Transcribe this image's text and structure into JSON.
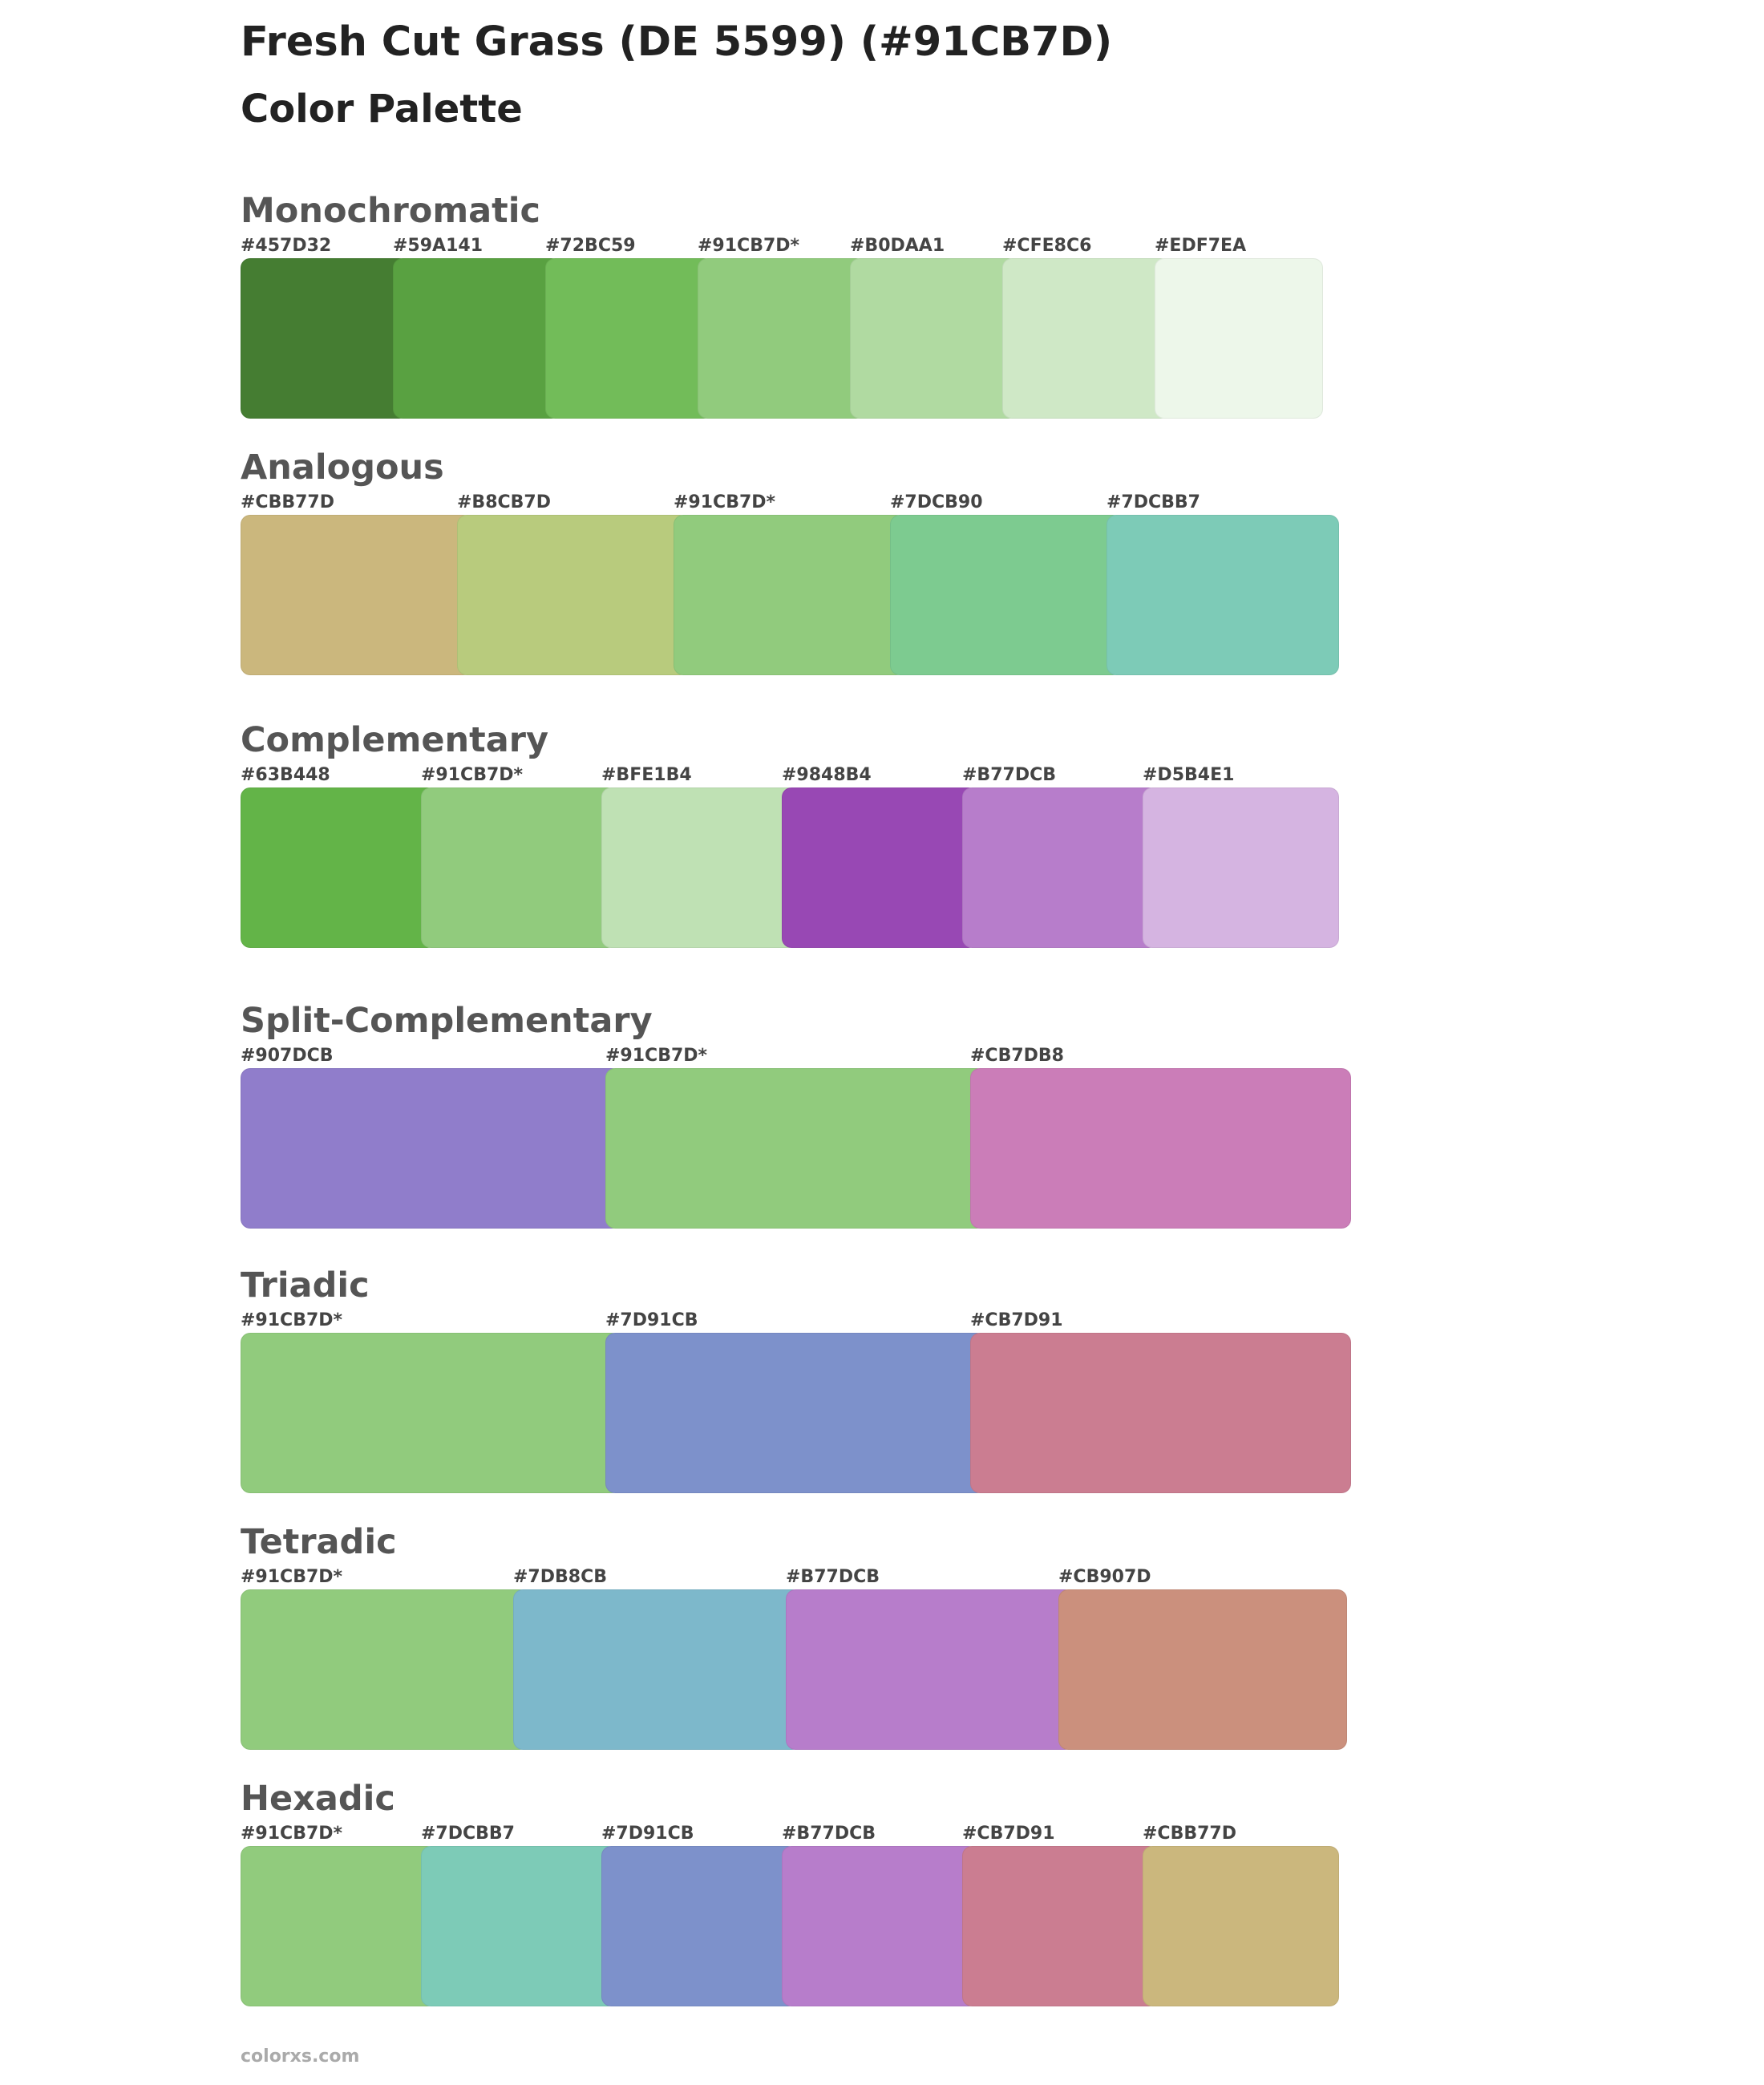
{
  "title": "Fresh Cut Grass (DE 5599) (#91CB7D)",
  "subtitle": "Color Palette",
  "sections": [
    {
      "name": "Monochromatic",
      "swatches": [
        {
          "label": "#457D32",
          "color": "#457D32"
        },
        {
          "label": "#59A141",
          "color": "#59A141"
        },
        {
          "label": "#72BC59",
          "color": "#72BC59"
        },
        {
          "label": "#91CB7D*",
          "color": "#91CB7D"
        },
        {
          "label": "#B0DAA1",
          "color": "#B0DAA1"
        },
        {
          "label": "#CFE8C6",
          "color": "#CFE8C6"
        },
        {
          "label": "#EDF7EA",
          "color": "#EDF7EA"
        }
      ]
    },
    {
      "name": "Analogous",
      "swatches": [
        {
          "label": "#CBB77D",
          "color": "#CBB77D"
        },
        {
          "label": "#B8CB7D",
          "color": "#B8CB7D"
        },
        {
          "label": "#91CB7D*",
          "color": "#91CB7D"
        },
        {
          "label": "#7DCB90",
          "color": "#7DCB90"
        },
        {
          "label": "#7DCBB7",
          "color": "#7DCBB7"
        }
      ]
    },
    {
      "name": "Complementary",
      "swatches": [
        {
          "label": "#63B448",
          "color": "#63B448"
        },
        {
          "label": "#91CB7D*",
          "color": "#91CB7D"
        },
        {
          "label": "#BFE1B4",
          "color": "#BFE1B4"
        },
        {
          "label": "#9848B4",
          "color": "#9848B4"
        },
        {
          "label": "#B77DCB",
          "color": "#B77DCB"
        },
        {
          "label": "#D5B4E1",
          "color": "#D5B4E1"
        }
      ]
    },
    {
      "name": "Split-Complementary",
      "swatches": [
        {
          "label": "#907DCB",
          "color": "#907DCB"
        },
        {
          "label": "#91CB7D*",
          "color": "#91CB7D"
        },
        {
          "label": "#CB7DB8",
          "color": "#CB7DB8"
        }
      ]
    },
    {
      "name": "Triadic",
      "swatches": [
        {
          "label": "#91CB7D*",
          "color": "#91CB7D"
        },
        {
          "label": "#7D91CB",
          "color": "#7D91CB"
        },
        {
          "label": "#CB7D91",
          "color": "#CB7D91"
        }
      ]
    },
    {
      "name": "Tetradic",
      "swatches": [
        {
          "label": "#91CB7D*",
          "color": "#91CB7D"
        },
        {
          "label": "#7DB8CB",
          "color": "#7DB8CB"
        },
        {
          "label": "#B77DCB",
          "color": "#B77DCB"
        },
        {
          "label": "#CB907D",
          "color": "#CB907D"
        }
      ]
    },
    {
      "name": "Hexadic",
      "swatches": [
        {
          "label": "#91CB7D*",
          "color": "#91CB7D"
        },
        {
          "label": "#7DCBB7",
          "color": "#7DCBB7"
        },
        {
          "label": "#7D91CB",
          "color": "#7D91CB"
        },
        {
          "label": "#B77DCB",
          "color": "#B77DCB"
        },
        {
          "label": "#CB7D91",
          "color": "#CB7D91"
        },
        {
          "label": "#CBB77D",
          "color": "#CBB77D"
        }
      ]
    }
  ],
  "footer": "colorxs.com"
}
